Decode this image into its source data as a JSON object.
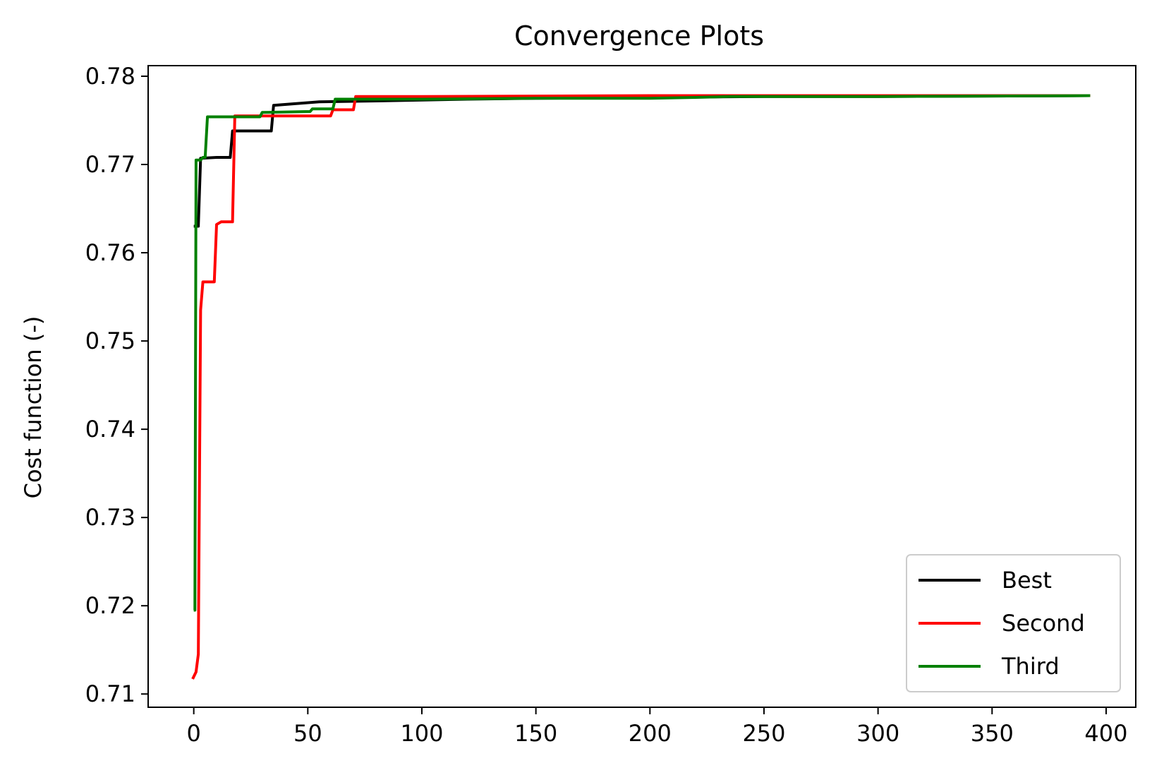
{
  "chart_data": {
    "type": "line",
    "title": "Convergence Plots",
    "xlabel": "",
    "ylabel": "Cost function (-)",
    "xlim": [
      -20,
      413
    ],
    "ylim": [
      0.7085,
      0.7812
    ],
    "xticks": [
      0,
      50,
      100,
      150,
      200,
      250,
      300,
      350,
      400
    ],
    "yticks": [
      0.71,
      0.72,
      0.73,
      0.74,
      0.75,
      0.76,
      0.77,
      0.78
    ],
    "ytick_labels": [
      "0.71",
      "0.72",
      "0.73",
      "0.74",
      "0.75",
      "0.76",
      "0.77",
      "0.78"
    ],
    "grid": false,
    "legend_position": "lower-right",
    "series": [
      {
        "name": "Best",
        "color": "#000000",
        "points": [
          [
            0,
            0.763
          ],
          [
            2,
            0.763
          ],
          [
            3,
            0.7707
          ],
          [
            10,
            0.7708
          ],
          [
            16,
            0.7708
          ],
          [
            17,
            0.7738
          ],
          [
            34,
            0.7738
          ],
          [
            35,
            0.7767
          ],
          [
            45,
            0.7769
          ],
          [
            50,
            0.777
          ],
          [
            55,
            0.7771
          ],
          [
            80,
            0.7772
          ],
          [
            100,
            0.7773
          ],
          [
            120,
            0.7774
          ],
          [
            150,
            0.7775
          ],
          [
            200,
            0.7776
          ],
          [
            250,
            0.7777
          ],
          [
            300,
            0.7777
          ],
          [
            393,
            0.7778
          ]
        ]
      },
      {
        "name": "Second",
        "color": "#ff0000",
        "points": [
          [
            -0.5,
            0.7117
          ],
          [
            1,
            0.7125
          ],
          [
            2,
            0.7145
          ],
          [
            3,
            0.7535
          ],
          [
            4,
            0.7567
          ],
          [
            9,
            0.7567
          ],
          [
            10,
            0.7632
          ],
          [
            12,
            0.7635
          ],
          [
            17,
            0.7635
          ],
          [
            18,
            0.7755
          ],
          [
            30,
            0.7755
          ],
          [
            35,
            0.7755
          ],
          [
            60,
            0.7755
          ],
          [
            61,
            0.7762
          ],
          [
            70,
            0.7762
          ],
          [
            71,
            0.7777
          ],
          [
            100,
            0.7777
          ],
          [
            200,
            0.7778
          ],
          [
            393,
            0.7778
          ]
        ]
      },
      {
        "name": "Third",
        "color": "#008000",
        "points": [
          [
            0,
            0.7195
          ],
          [
            0.5,
            0.7195
          ],
          [
            1,
            0.7705
          ],
          [
            3,
            0.7705
          ],
          [
            4,
            0.7708
          ],
          [
            5,
            0.7708
          ],
          [
            6,
            0.7754
          ],
          [
            29,
            0.7754
          ],
          [
            30,
            0.7759
          ],
          [
            51,
            0.776
          ],
          [
            52,
            0.7763
          ],
          [
            61,
            0.7763
          ],
          [
            62,
            0.7774
          ],
          [
            70,
            0.7774
          ],
          [
            100,
            0.7774
          ],
          [
            150,
            0.7775
          ],
          [
            200,
            0.7775
          ],
          [
            220,
            0.7776
          ],
          [
            235,
            0.7777
          ],
          [
            300,
            0.7777
          ],
          [
            393,
            0.7778
          ]
        ]
      }
    ]
  }
}
